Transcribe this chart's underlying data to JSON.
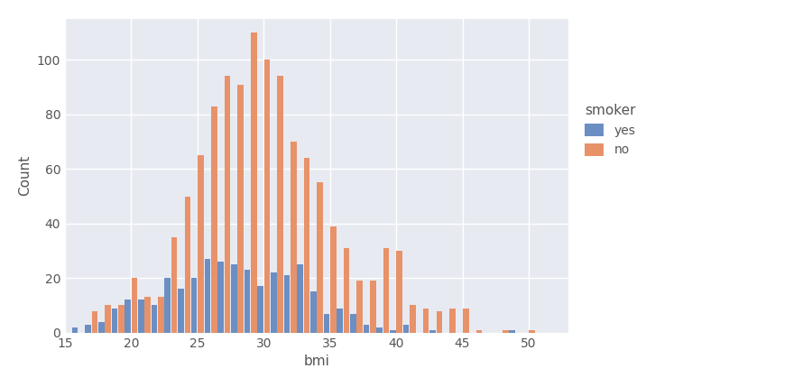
{
  "title": "",
  "xlabel": "bmi",
  "ylabel": "Count",
  "plot_bg_color": "#e8eaf2",
  "fig_bg_color": "#f0f0f0",
  "grid_color": "#ffffff",
  "bar_color_yes": "#6b8fc2",
  "bar_color_no": "#e8926a",
  "legend_title": "smoker",
  "legend_labels": [
    "yes",
    "no"
  ],
  "xlim": [
    15,
    53
  ],
  "ylim": [
    0,
    115
  ],
  "yticks": [
    0,
    20,
    40,
    60,
    80,
    100
  ],
  "xticks": [
    15,
    20,
    25,
    30,
    35,
    40,
    45,
    50
  ],
  "bin_centers": [
    16,
    17,
    18,
    19,
    20,
    21,
    22,
    23,
    24,
    25,
    26,
    27,
    28,
    29,
    30,
    31,
    32,
    33,
    34,
    35,
    36,
    37,
    38,
    39,
    40,
    41,
    42,
    43,
    44,
    45,
    46,
    47,
    48,
    49,
    50,
    51
  ],
  "yes_counts": [
    2,
    3,
    4,
    9,
    12,
    12,
    10,
    20,
    16,
    20,
    27,
    26,
    25,
    23,
    17,
    22,
    21,
    25,
    15,
    7,
    9,
    7,
    3,
    2,
    1,
    3,
    0,
    1,
    0,
    0,
    0,
    0,
    0,
    1,
    0,
    0
  ],
  "no_counts": [
    0,
    8,
    10,
    10,
    20,
    13,
    13,
    35,
    50,
    65,
    83,
    94,
    91,
    110,
    100,
    94,
    70,
    64,
    55,
    39,
    31,
    19,
    19,
    31,
    30,
    10,
    9,
    8,
    9,
    9,
    1,
    0,
    1,
    0,
    1,
    0
  ]
}
